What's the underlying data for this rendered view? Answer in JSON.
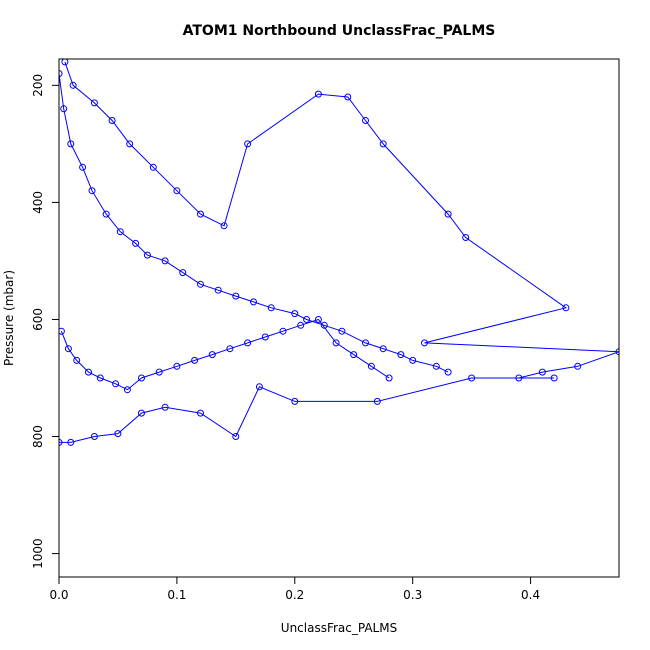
{
  "chart_data": {
    "type": "scatter",
    "title": "ATOM1 Northbound UnclassFrac_PALMS",
    "xlabel": "UnclassFrac_PALMS",
    "ylabel": "Pressure (mbar)",
    "xlim": [
      0.0,
      0.475
    ],
    "ylim": [
      1040,
      155
    ],
    "y_reversed": true,
    "xticks": [
      0.0,
      0.1,
      0.2,
      0.3,
      0.4
    ],
    "xtick_labels": [
      "0.0",
      "0.1",
      "0.2",
      "0.3",
      "0.4"
    ],
    "yticks": [
      200,
      400,
      600,
      800,
      1000
    ],
    "ytick_labels": [
      "200",
      "400",
      "600",
      "800",
      "1000"
    ],
    "grid": false,
    "legend": "none",
    "marker": "open-circle",
    "connect_points": true,
    "color": "#0000ff",
    "series": [
      {
        "x": [
          0.005,
          0.012,
          0.03,
          0.045,
          0.06,
          0.08,
          0.1,
          0.12,
          0.14,
          0.16,
          0.22,
          0.245,
          0.26,
          0.275,
          0.33,
          0.345,
          0.43,
          0.31,
          0.475,
          0.44,
          0.41,
          0.39,
          0.42,
          0.35,
          0.27,
          0.2,
          0.17,
          0.15,
          0.12,
          0.09,
          0.07,
          0.05,
          0.03,
          0.01,
          0.0
        ],
        "y": [
          160,
          200,
          230,
          260,
          300,
          340,
          380,
          420,
          440,
          300,
          215,
          220,
          260,
          300,
          420,
          460,
          580,
          640,
          655,
          680,
          690,
          700,
          700,
          700,
          740,
          740,
          715,
          800,
          760,
          750,
          760,
          795,
          800,
          810,
          810
        ]
      },
      {
        "x": [
          0.0,
          0.004,
          0.01,
          0.02,
          0.028,
          0.04,
          0.052,
          0.065,
          0.075,
          0.09,
          0.105,
          0.12,
          0.135,
          0.15,
          0.165,
          0.18,
          0.2,
          0.21,
          0.225,
          0.24,
          0.26,
          0.275,
          0.29,
          0.3,
          0.32,
          0.33
        ],
        "y": [
          180,
          240,
          300,
          340,
          380,
          420,
          450,
          470,
          490,
          500,
          520,
          540,
          550,
          560,
          570,
          580,
          590,
          600,
          610,
          620,
          640,
          650,
          660,
          670,
          680,
          690
        ]
      },
      {
        "x": [
          0.002,
          0.008,
          0.015,
          0.025,
          0.035,
          0.048,
          0.058,
          0.07,
          0.085,
          0.1,
          0.115,
          0.13,
          0.145,
          0.16,
          0.175,
          0.19,
          0.205,
          0.22,
          0.235,
          0.25,
          0.265,
          0.28
        ],
        "y": [
          620,
          650,
          670,
          690,
          700,
          710,
          720,
          700,
          690,
          680,
          670,
          660,
          650,
          640,
          630,
          620,
          610,
          600,
          640,
          660,
          680,
          700
        ]
      }
    ]
  }
}
